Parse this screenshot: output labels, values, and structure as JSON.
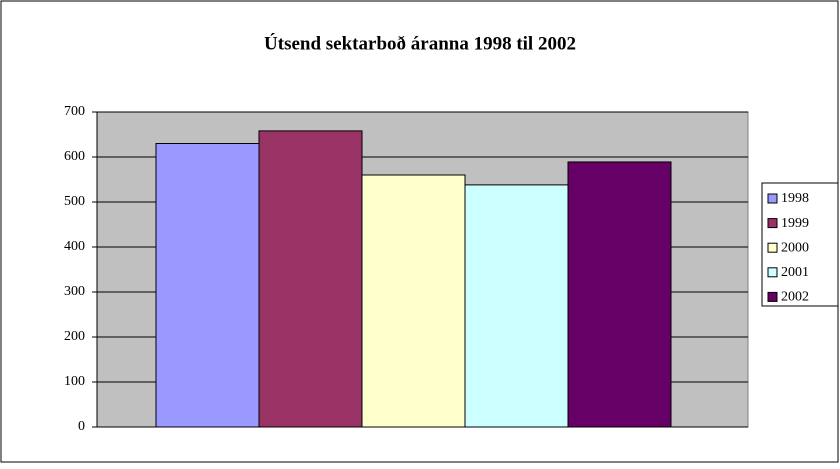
{
  "chart_data": {
    "type": "bar",
    "title": "Útsend sektarboð áranna 1998 til 2002",
    "categories": [
      null
    ],
    "series": [
      {
        "name": "1998",
        "color": "#9999ff",
        "values": [
          630
        ]
      },
      {
        "name": "1999",
        "color": "#993366",
        "values": [
          658
        ]
      },
      {
        "name": "2000",
        "color": "#ffffcc",
        "values": [
          560
        ]
      },
      {
        "name": "2001",
        "color": "#ccffff",
        "values": [
          538
        ]
      },
      {
        "name": "2002",
        "color": "#660066",
        "values": [
          589
        ]
      }
    ],
    "ylim": [
      0,
      700
    ],
    "yticks": [
      0,
      100,
      200,
      300,
      400,
      500,
      600,
      700
    ],
    "grid": true,
    "legend": "right"
  }
}
